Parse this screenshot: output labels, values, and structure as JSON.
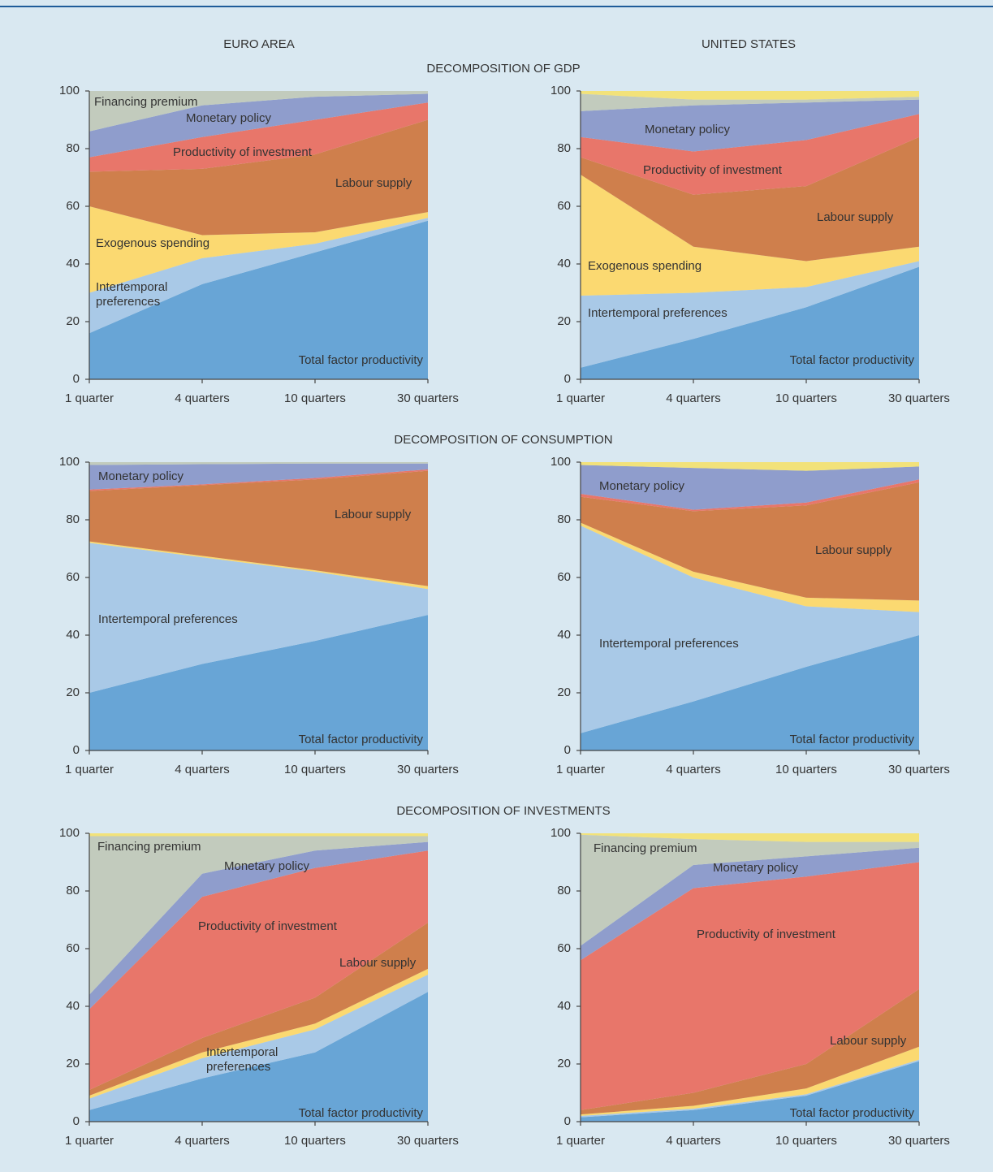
{
  "columns": [
    "EURO AREA",
    "UNITED STATES"
  ],
  "sections": [
    "DECOMPOSITION OF GDP",
    "DECOMPOSITION OF CONSUMPTION",
    "DECOMPOSITION OF INVESTMENTS"
  ],
  "chart_data": [
    {
      "type": "stacked-area",
      "categories": [
        "1 quarter",
        "4 quarters",
        "10 quarters",
        "30 quarters"
      ],
      "ylim": [
        0,
        100
      ],
      "yticks": [
        0,
        20,
        40,
        60,
        80,
        100
      ],
      "series": [
        {
          "name": "Total factor productivity",
          "color": "#68a5d6",
          "values": [
            16,
            33,
            44,
            55
          ]
        },
        {
          "name": "Intertemporal preferences",
          "color": "#a9c9e7",
          "values": [
            14,
            9,
            3,
            1
          ]
        },
        {
          "name": "Exogenous spending",
          "color": "#fbd971",
          "values": [
            30,
            8,
            4,
            2
          ]
        },
        {
          "name": "Labour supply",
          "color": "#cf7f4c",
          "values": [
            12,
            23,
            27,
            32
          ]
        },
        {
          "name": "Productivity of investment",
          "color": "#e8766a",
          "values": [
            5,
            11,
            12,
            6
          ]
        },
        {
          "name": "Monetary policy",
          "color": "#8f9dcc",
          "values": [
            9,
            11,
            8,
            3
          ]
        },
        {
          "name": "Financing premium",
          "color": "#c2cbbd",
          "values": [
            14,
            5,
            2,
            1
          ]
        }
      ]
    },
    {
      "type": "stacked-area",
      "categories": [
        "1 quarter",
        "4 quarters",
        "10 quarters",
        "30 quarters"
      ],
      "ylim": [
        0,
        100
      ],
      "yticks": [
        0,
        20,
        40,
        60,
        80,
        100
      ],
      "series": [
        {
          "name": "Total factor productivity",
          "color": "#68a5d6",
          "values": [
            4,
            14,
            25,
            39
          ]
        },
        {
          "name": "Intertemporal preferences",
          "color": "#a9c9e7",
          "values": [
            25,
            16,
            7,
            2
          ]
        },
        {
          "name": "Exogenous spending",
          "color": "#fbd971",
          "values": [
            42,
            16,
            9,
            5
          ]
        },
        {
          "name": "Labour supply",
          "color": "#cf7f4c",
          "values": [
            6,
            18,
            26,
            38
          ]
        },
        {
          "name": "Productivity of investment",
          "color": "#e8766a",
          "values": [
            7,
            15,
            16,
            8
          ]
        },
        {
          "name": "Monetary policy",
          "color": "#8f9dcc",
          "values": [
            9,
            16,
            13,
            5
          ]
        },
        {
          "color": "#c2cbbd",
          "values": [
            6,
            2,
            1,
            1
          ]
        },
        {
          "color": "#f2e27a",
          "values": [
            1,
            3,
            3,
            2
          ]
        }
      ]
    },
    {
      "type": "stacked-area",
      "categories": [
        "1 quarter",
        "4 quarters",
        "10 quarters",
        "30 quarters"
      ],
      "ylim": [
        0,
        100
      ],
      "yticks": [
        0,
        20,
        40,
        60,
        80,
        100
      ],
      "series": [
        {
          "name": "Total factor productivity",
          "color": "#68a5d6",
          "values": [
            20,
            30,
            38,
            47
          ]
        },
        {
          "name": "Intertemporal preferences",
          "color": "#a9c9e7",
          "values": [
            52,
            37,
            24,
            9
          ]
        },
        {
          "color": "#fbd971",
          "values": [
            0.5,
            0.5,
            0.5,
            1
          ]
        },
        {
          "name": "Labour supply",
          "color": "#cf7f4c",
          "values": [
            17.5,
            24.5,
            31.5,
            40
          ]
        },
        {
          "color": "#e8766a",
          "values": [
            0.5,
            0.3,
            0.5,
            0.5
          ]
        },
        {
          "name": "Monetary policy",
          "color": "#8f9dcc",
          "values": [
            8.5,
            7,
            5,
            2
          ]
        },
        {
          "color": "#c2cbbd",
          "values": [
            1,
            0.7,
            0.5,
            0.5
          ]
        }
      ]
    },
    {
      "type": "stacked-area",
      "categories": [
        "1 quarter",
        "4 quarters",
        "10 quarters",
        "30 quarters"
      ],
      "ylim": [
        0,
        100
      ],
      "yticks": [
        0,
        20,
        40,
        60,
        80,
        100
      ],
      "series": [
        {
          "name": "Total factor productivity",
          "color": "#68a5d6",
          "values": [
            6,
            17,
            29,
            40
          ]
        },
        {
          "name": "Intertemporal preferences",
          "color": "#a9c9e7",
          "values": [
            72,
            43,
            21,
            8
          ]
        },
        {
          "color": "#fbd971",
          "values": [
            1,
            2,
            3,
            4
          ]
        },
        {
          "name": "Labour supply",
          "color": "#cf7f4c",
          "values": [
            9,
            21,
            32,
            41
          ]
        },
        {
          "color": "#e8766a",
          "values": [
            1,
            0.5,
            1,
            1
          ]
        },
        {
          "name": "Monetary policy",
          "color": "#8f9dcc",
          "values": [
            10,
            14.5,
            11,
            4.5
          ]
        },
        {
          "color": "#f2e27a",
          "values": [
            1,
            2,
            3,
            1.5
          ]
        }
      ]
    },
    {
      "type": "stacked-area",
      "categories": [
        "1 quarter",
        "4 quarters",
        "10 quarters",
        "30 quarters"
      ],
      "ylim": [
        0,
        100
      ],
      "yticks": [
        0,
        20,
        40,
        60,
        80,
        100
      ],
      "series": [
        {
          "name": "Total factor productivity",
          "color": "#68a5d6",
          "values": [
            4,
            15,
            24,
            45
          ]
        },
        {
          "name": "Intertemporal preferences",
          "color": "#a9c9e7",
          "values": [
            4,
            7,
            8,
            6
          ]
        },
        {
          "color": "#fbd971",
          "values": [
            1,
            2,
            2,
            2
          ]
        },
        {
          "name": "Labour supply",
          "color": "#cf7f4c",
          "values": [
            2,
            5,
            9,
            16
          ]
        },
        {
          "name": "Productivity of investment",
          "color": "#e8766a",
          "values": [
            28,
            49,
            45,
            25
          ]
        },
        {
          "name": "Monetary policy",
          "color": "#8f9dcc",
          "values": [
            5,
            8,
            6,
            3
          ]
        },
        {
          "name": "Financing premium",
          "color": "#c2cbbd",
          "values": [
            55,
            13,
            5,
            2
          ]
        },
        {
          "color": "#f2e27a",
          "values": [
            1,
            1,
            1,
            1
          ]
        }
      ]
    },
    {
      "type": "stacked-area",
      "categories": [
        "1 quarter",
        "4 quarters",
        "10 quarters",
        "30 quarters"
      ],
      "ylim": [
        0,
        100
      ],
      "yticks": [
        0,
        20,
        40,
        60,
        80,
        100
      ],
      "series": [
        {
          "name": "Total factor productivity",
          "color": "#68a5d6",
          "values": [
            1.5,
            4,
            9,
            21
          ]
        },
        {
          "color": "#a9c9e7",
          "values": [
            0.5,
            0.5,
            0.5,
            0.5
          ]
        },
        {
          "color": "#fbd971",
          "values": [
            0.5,
            1,
            2,
            4.5
          ]
        },
        {
          "name": "Labour supply",
          "color": "#cf7f4c",
          "values": [
            1.5,
            4.5,
            8.5,
            20
          ]
        },
        {
          "name": "Productivity of investment",
          "color": "#e8766a",
          "values": [
            52,
            71,
            65,
            44
          ]
        },
        {
          "name": "Monetary policy",
          "color": "#8f9dcc",
          "values": [
            5,
            8,
            7,
            5
          ]
        },
        {
          "name": "Financing premium",
          "color": "#c2cbbd",
          "values": [
            38.5,
            9,
            5,
            2
          ]
        },
        {
          "color": "#f2e27a",
          "values": [
            0.5,
            2,
            3,
            3
          ]
        }
      ]
    }
  ]
}
